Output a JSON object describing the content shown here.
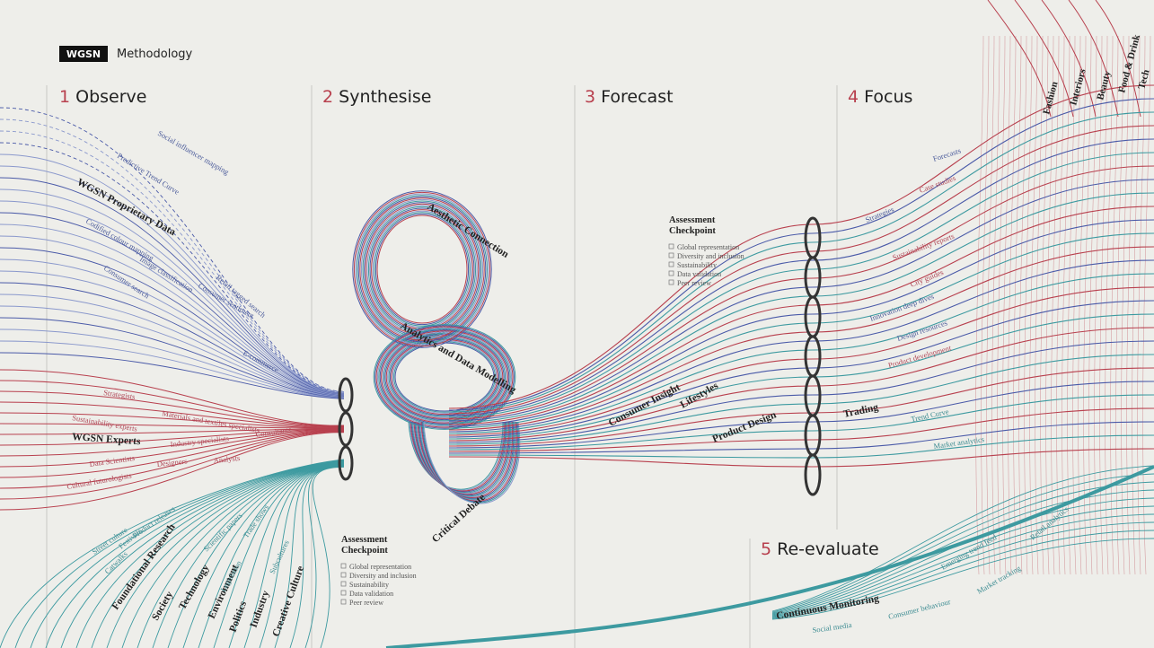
{
  "header": {
    "logo": "WGSN",
    "title": "Methodology"
  },
  "stages": [
    {
      "number": "1",
      "name": "Observe"
    },
    {
      "number": "2",
      "name": "Synthesise"
    },
    {
      "number": "3",
      "name": "Forecast"
    },
    {
      "number": "4",
      "name": "Focus"
    },
    {
      "number": "5",
      "name": "Re-evaluate"
    }
  ],
  "observe": {
    "data": {
      "title": "WGSN Proprietary Data",
      "items": [
        "Social influencer mapping",
        "Predictive Trend Curve",
        "Codified colour mapping",
        "Image classification",
        "Consumer search",
        "Consumer sentiment",
        "Retail tagged search",
        "E-commerce"
      ]
    },
    "experts": {
      "title": "WGSN Experts",
      "items": [
        "Strategists",
        "Sustainability experts",
        "Materials and textiles specialists",
        "Industry specialists",
        "Consultants",
        "Data Scientists",
        "Designers",
        "Analysts",
        "Cultural futurologists"
      ]
    },
    "research": {
      "title": "Foundational Research",
      "pillars": [
        "Society",
        "Technology",
        "Environment",
        "Politics",
        "Industry",
        "Creative Culture"
      ],
      "items": [
        "Street culture",
        "Festivals",
        "Product releases",
        "Catwalks",
        "Scientific papers",
        "Trade shows",
        "Legislation",
        "Subcultures"
      ]
    }
  },
  "synthesise": {
    "items": [
      "Aesthetic Connection",
      "Analytics and Data Modelling",
      "Critical Debate"
    ]
  },
  "checkpoints": [
    {
      "title": [
        "Assessment",
        "Checkpoint"
      ],
      "items": [
        "Global representation",
        "Diversity and inclusion",
        "Sustainability",
        "Data validation",
        "Peer review"
      ]
    },
    {
      "title": [
        "Assessment",
        "Checkpoint"
      ],
      "items": [
        "Global representation",
        "Diversity and inclusion",
        "Sustainability",
        "Data validation",
        "Peer review"
      ]
    }
  ],
  "forecast": {
    "items": [
      "Consumer Insight",
      "Lifestyles",
      "Product Design",
      "Trading"
    ]
  },
  "focus": {
    "outputs": [
      "Forecasts",
      "Case studies",
      "Strategies",
      "Sustainability reports",
      "City guides",
      "Innovation deep dives",
      "Design resources",
      "Product development",
      "Trend Curve",
      "Market analytics"
    ],
    "industries": [
      "Fashion",
      "Interiors",
      "Beauty",
      "Food & Drink",
      "Tech"
    ]
  },
  "reevaluate": {
    "title": "Continuous Monitoring",
    "items": [
      "Social media",
      "Consumer behaviour",
      "Market tracking",
      "Emerging trend feed",
      "Retail analytics"
    ]
  }
}
